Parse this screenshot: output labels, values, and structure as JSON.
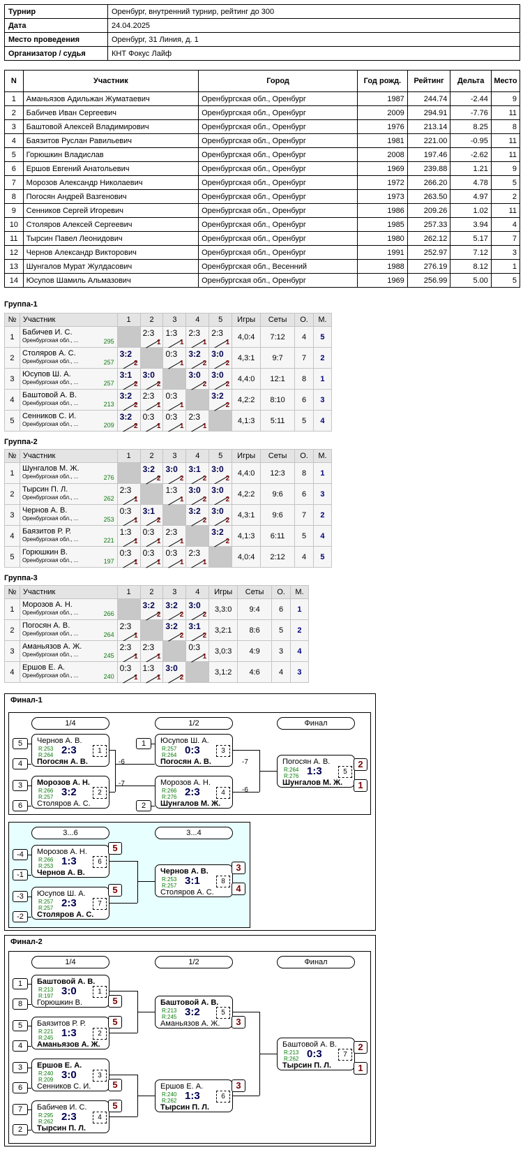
{
  "info": [
    {
      "k": "Турнир",
      "v": "Оренбург, внутренний турнир, рейтинг до 300"
    },
    {
      "k": "Дата",
      "v": "24.04.2025"
    },
    {
      "k": "Место проведения",
      "v": "Оренбург, 31 Линия, д. 1"
    },
    {
      "k": "Организатор / судья",
      "v": "КНТ Фокус Лайф"
    }
  ],
  "participants": {
    "headers": [
      "N",
      "Участник",
      "Город",
      "Год рожд.",
      "Рейтинг",
      "Дельта",
      "Место"
    ],
    "rows": [
      [
        "1",
        "Аманьязов Адильжан Жуматаевич",
        "Оренбургская обл., Оренбург",
        "1987",
        "244.74",
        "-2.44",
        "9"
      ],
      [
        "2",
        "Бабичев Иван Сергеевич",
        "Оренбургская обл., Оренбург",
        "2009",
        "294.91",
        "-7.76",
        "11"
      ],
      [
        "3",
        "Баштовой Алексей Владимирович",
        "Оренбургская обл., Оренбург",
        "1976",
        "213.14",
        "8.25",
        "8"
      ],
      [
        "4",
        "Баязитов Руслан Равильевич",
        "Оренбургская обл., Оренбург",
        "1981",
        "221.00",
        "-0.95",
        "11"
      ],
      [
        "5",
        "Горюшкин Владислав",
        "Оренбургская обл., Оренбург",
        "2008",
        "197.46",
        "-2.62",
        "11"
      ],
      [
        "6",
        "Ершов Евгений Анатольевич",
        "Оренбургская обл., Оренбург",
        "1969",
        "239.88",
        "1.21",
        "9"
      ],
      [
        "7",
        "Морозов Александр Николаевич",
        "Оренбургская обл., Оренбург",
        "1972",
        "266.20",
        "4.78",
        "5"
      ],
      [
        "8",
        "Погосян Андрей Вазгенович",
        "Оренбургская обл., Оренбург",
        "1973",
        "263.50",
        "4.97",
        "2"
      ],
      [
        "9",
        "Сенников Сергей Игоревич",
        "Оренбургская обл., Оренбург",
        "1986",
        "209.26",
        "1.02",
        "11"
      ],
      [
        "10",
        "Столяров Алексей Сергеевич",
        "Оренбургская обл., Оренбург",
        "1985",
        "257.33",
        "3.94",
        "4"
      ],
      [
        "11",
        "Тырсин Павел Леонидович",
        "Оренбургская обл., Оренбург",
        "1980",
        "262.12",
        "5.17",
        "7"
      ],
      [
        "12",
        "Чернов Александр Викторович",
        "Оренбургская обл., Оренбург",
        "1991",
        "252.97",
        "7.12",
        "3"
      ],
      [
        "13",
        "Шунгалов Мурат Жулдасович",
        "Оренбургская обл., Весенний",
        "1988",
        "276.19",
        "8.12",
        "1"
      ],
      [
        "14",
        "Юсупов Шамиль Альмазович",
        "Оренбургская обл., Оренбург",
        "1969",
        "256.99",
        "5.00",
        "5"
      ]
    ]
  },
  "groups": [
    {
      "title": "Группа-1",
      "cols": [
        "1",
        "2",
        "3",
        "4",
        "5"
      ],
      "stat_headers": [
        "Игры",
        "Сеты",
        "О.",
        "М."
      ],
      "players": [
        {
          "n": "1",
          "name": "Бабичев И. С.",
          "city": "Оренбургская обл., ...",
          "rating": "295",
          "cells": [
            null,
            {
              "s": "2:3",
              "p": "1"
            },
            {
              "s": "1:3",
              "p": "1"
            },
            {
              "s": "2:3",
              "p": "1"
            },
            {
              "s": "2:3",
              "p": "1"
            }
          ],
          "games": "4,0:4",
          "sets": "7:12",
          "pts": "4",
          "place": "5"
        },
        {
          "n": "2",
          "name": "Столяров А. С.",
          "city": "Оренбургская обл., ...",
          "rating": "257",
          "cells": [
            {
              "s": "3:2",
              "p": "2",
              "w": true
            },
            null,
            {
              "s": "0:3",
              "p": "1"
            },
            {
              "s": "3:2",
              "p": "2",
              "w": true
            },
            {
              "s": "3:0",
              "p": "2",
              "w": true
            }
          ],
          "games": "4,3:1",
          "sets": "9:7",
          "pts": "7",
          "place": "2"
        },
        {
          "n": "3",
          "name": "Юсупов Ш. А.",
          "city": "Оренбургская обл., ...",
          "rating": "257",
          "cells": [
            {
              "s": "3:1",
              "p": "2",
              "w": true
            },
            {
              "s": "3:0",
              "p": "2",
              "w": true
            },
            null,
            {
              "s": "3:0",
              "p": "2",
              "w": true
            },
            {
              "s": "3:0",
              "p": "2",
              "w": true
            }
          ],
          "games": "4,4:0",
          "sets": "12:1",
          "pts": "8",
          "place": "1"
        },
        {
          "n": "4",
          "name": "Баштовой А. В.",
          "city": "Оренбургская обл., ...",
          "rating": "213",
          "cells": [
            {
              "s": "3:2",
              "p": "2",
              "w": true
            },
            {
              "s": "2:3",
              "p": "1"
            },
            {
              "s": "0:3",
              "p": "1"
            },
            null,
            {
              "s": "3:2",
              "p": "2",
              "w": true
            }
          ],
          "games": "4,2:2",
          "sets": "8:10",
          "pts": "6",
          "place": "3"
        },
        {
          "n": "5",
          "name": "Сенников С. И.",
          "city": "Оренбургская обл., ...",
          "rating": "209",
          "cells": [
            {
              "s": "3:2",
              "p": "2",
              "w": true
            },
            {
              "s": "0:3",
              "p": "1"
            },
            {
              "s": "0:3",
              "p": "1"
            },
            {
              "s": "2:3",
              "p": "1"
            },
            null
          ],
          "games": "4,1:3",
          "sets": "5:11",
          "pts": "5",
          "place": "4"
        }
      ]
    },
    {
      "title": "Группа-2",
      "cols": [
        "1",
        "2",
        "3",
        "4",
        "5"
      ],
      "stat_headers": [
        "Игры",
        "Сеты",
        "О.",
        "М."
      ],
      "players": [
        {
          "n": "1",
          "name": "Шунгалов М. Ж.",
          "city": "Оренбургская обл., ...",
          "rating": "276",
          "cells": [
            null,
            {
              "s": "3:2",
              "p": "2",
              "w": true
            },
            {
              "s": "3:0",
              "p": "2",
              "w": true
            },
            {
              "s": "3:1",
              "p": "2",
              "w": true
            },
            {
              "s": "3:0",
              "p": "2",
              "w": true
            }
          ],
          "games": "4,4:0",
          "sets": "12:3",
          "pts": "8",
          "place": "1"
        },
        {
          "n": "2",
          "name": "Тырсин П. Л.",
          "city": "Оренбургская обл., ...",
          "rating": "262",
          "cells": [
            {
              "s": "2:3",
              "p": "1"
            },
            null,
            {
              "s": "1:3",
              "p": "1"
            },
            {
              "s": "3:0",
              "p": "2",
              "w": true
            },
            {
              "s": "3:0",
              "p": "2",
              "w": true
            }
          ],
          "games": "4,2:2",
          "sets": "9:6",
          "pts": "6",
          "place": "3"
        },
        {
          "n": "3",
          "name": "Чернов А. В.",
          "city": "Оренбургская обл., ...",
          "rating": "253",
          "cells": [
            {
              "s": "0:3",
              "p": "1"
            },
            {
              "s": "3:1",
              "p": "2",
              "w": true
            },
            null,
            {
              "s": "3:2",
              "p": "2",
              "w": true
            },
            {
              "s": "3:0",
              "p": "2",
              "w": true
            }
          ],
          "games": "4,3:1",
          "sets": "9:6",
          "pts": "7",
          "place": "2"
        },
        {
          "n": "4",
          "name": "Баязитов Р. Р.",
          "city": "Оренбургская обл., ...",
          "rating": "221",
          "cells": [
            {
              "s": "1:3",
              "p": "1"
            },
            {
              "s": "0:3",
              "p": "1"
            },
            {
              "s": "2:3",
              "p": "1"
            },
            null,
            {
              "s": "3:2",
              "p": "2",
              "w": true
            }
          ],
          "games": "4,1:3",
          "sets": "6:11",
          "pts": "5",
          "place": "4"
        },
        {
          "n": "5",
          "name": "Горюшкин В.",
          "city": "Оренбургская обл., ...",
          "rating": "197",
          "cells": [
            {
              "s": "0:3",
              "p": "1"
            },
            {
              "s": "0:3",
              "p": "1"
            },
            {
              "s": "0:3",
              "p": "1"
            },
            {
              "s": "2:3",
              "p": "1"
            },
            null
          ],
          "games": "4,0:4",
          "sets": "2:12",
          "pts": "4",
          "place": "5"
        }
      ]
    },
    {
      "title": "Группа-3",
      "cols": [
        "1",
        "2",
        "3",
        "4"
      ],
      "stat_headers": [
        "Игры",
        "Сеты",
        "О.",
        "М."
      ],
      "players": [
        {
          "n": "1",
          "name": "Морозов А. Н.",
          "city": "Оренбургская обл., ...",
          "rating": "266",
          "cells": [
            null,
            {
              "s": "3:2",
              "p": "2",
              "w": true
            },
            {
              "s": "3:2",
              "p": "2",
              "w": true
            },
            {
              "s": "3:0",
              "p": "2",
              "w": true
            }
          ],
          "games": "3,3:0",
          "sets": "9:4",
          "pts": "6",
          "place": "1"
        },
        {
          "n": "2",
          "name": "Погосян А. В.",
          "city": "Оренбургская обл., ...",
          "rating": "264",
          "cells": [
            {
              "s": "2:3",
              "p": "1"
            },
            null,
            {
              "s": "3:2",
              "p": "2",
              "w": true
            },
            {
              "s": "3:1",
              "p": "2",
              "w": true
            }
          ],
          "games": "3,2:1",
          "sets": "8:6",
          "pts": "5",
          "place": "2"
        },
        {
          "n": "3",
          "name": "Аманьязов А. Ж.",
          "city": "Оренбургская обл., ...",
          "rating": "245",
          "cells": [
            {
              "s": "2:3",
              "p": "1"
            },
            {
              "s": "2:3",
              "p": "1"
            },
            null,
            {
              "s": "0:3",
              "p": "1"
            }
          ],
          "games": "3,0:3",
          "sets": "4:9",
          "pts": "3",
          "place": "4"
        },
        {
          "n": "4",
          "name": "Ершов Е. А.",
          "city": "Оренбургская обл., ...",
          "rating": "240",
          "cells": [
            {
              "s": "0:3",
              "p": "1"
            },
            {
              "s": "1:3",
              "p": "1"
            },
            {
              "s": "3:0",
              "p": "2",
              "w": true
            },
            null
          ],
          "games": "3,1:2",
          "sets": "4:6",
          "pts": "4",
          "place": "3"
        }
      ]
    }
  ],
  "final1": {
    "title": "Финал-1",
    "headers": {
      "q": "1/4",
      "s": "1/2",
      "f": "Финал",
      "c1": "3...6",
      "c2": "3...4"
    },
    "seeds": [
      "5",
      "4",
      "3",
      "6",
      "1",
      "2",
      "-4",
      "-1",
      "-3",
      "-2"
    ],
    "matches": [
      {
        "no": "1",
        "p1": "Чернов А. В.",
        "r1": "R:253",
        "p2": "Погосян А. В.",
        "r2": "R:264",
        "score": "2:3",
        "winner": 2,
        "lose_label": "-6"
      },
      {
        "no": "2",
        "p1": "Морозов А. Н.",
        "r1": "R:266",
        "p2": "Столяров А. С.",
        "r2": "R:257",
        "score": "3:2",
        "winner": 1,
        "lose_label": "-7"
      },
      {
        "no": "3",
        "p1": "Юсупов Ш. А.",
        "r1": "R:257",
        "p2": "Погосян А. В.",
        "r2": "R:264",
        "score": "0:3",
        "winner": 2,
        "lose_label": "-7"
      },
      {
        "no": "4",
        "p1": "Морозов А. Н.",
        "r1": "R:266",
        "p2": "Шунгалов М. Ж.",
        "r2": "R:276",
        "score": "2:3",
        "winner": 2,
        "lose_label": "-6"
      },
      {
        "no": "5",
        "p1": "Погосян А. В.",
        "r1": "R:264",
        "p2": "Шунгалов М. Ж.",
        "r2": "R:276",
        "score": "1:3",
        "winner": 2,
        "place1": "2",
        "place2": "1"
      },
      {
        "no": "6",
        "p1": "Морозов А. Н.",
        "r1": "R:266",
        "p2": "Чернов А. В.",
        "r2": "R:253",
        "score": "1:3",
        "winner": 2,
        "place": "5"
      },
      {
        "no": "7",
        "p1": "Юсупов Ш. А.",
        "r1": "R:257",
        "p2": "Столяров А. С.",
        "r2": "R:257",
        "score": "2:3",
        "winner": 2,
        "place": "5"
      },
      {
        "no": "8",
        "p1": "Чернов А. В.",
        "r1": "R:253",
        "p2": "Столяров А. С.",
        "r2": "R:257",
        "score": "3:1",
        "winner": 1,
        "place1": "3",
        "place2": "4"
      }
    ]
  },
  "final2": {
    "title": "Финал-2",
    "headers": {
      "q": "1/4",
      "s": "1/2",
      "f": "Финал"
    },
    "seeds": [
      "1",
      "8",
      "5",
      "4",
      "3",
      "6",
      "7",
      "2"
    ],
    "matches": [
      {
        "no": "1",
        "p1": "Баштовой А. В.",
        "r1": "R:213",
        "p2": "Горюшкин В.",
        "r2": "R:197",
        "score": "3:0",
        "winner": 1,
        "place": "5"
      },
      {
        "no": "2",
        "p1": "Баязитов Р. Р.",
        "r1": "R:221",
        "p2": "Аманьязов А. Ж.",
        "r2": "R:245",
        "score": "1:3",
        "winner": 2,
        "place": "5"
      },
      {
        "no": "3",
        "p1": "Ершов Е. А.",
        "r1": "R:240",
        "p2": "Сенников С. И.",
        "r2": "R:209",
        "score": "3:0",
        "winner": 1,
        "place": "5"
      },
      {
        "no": "4",
        "p1": "Бабичев И. С.",
        "r1": "R:295",
        "p2": "Тырсин П. Л.",
        "r2": "R:262",
        "score": "2:3",
        "winner": 2,
        "place": "5"
      },
      {
        "no": "5",
        "p1": "Баштовой А. В.",
        "r1": "R:213",
        "p2": "Аманьязов А. Ж.",
        "r2": "R:245",
        "score": "3:2",
        "winner": 1,
        "place": "3"
      },
      {
        "no": "6",
        "p1": "Ершов Е. А.",
        "r1": "R:240",
        "p2": "Тырсин П. Л.",
        "r2": "R:262",
        "score": "1:3",
        "winner": 2,
        "place": "3"
      },
      {
        "no": "7",
        "p1": "Баштовой А. В.",
        "r1": "R:213",
        "p2": "Тырсин П. Л.",
        "r2": "R:262",
        "score": "0:3",
        "winner": 2,
        "place1": "2",
        "place2": "1"
      }
    ]
  }
}
